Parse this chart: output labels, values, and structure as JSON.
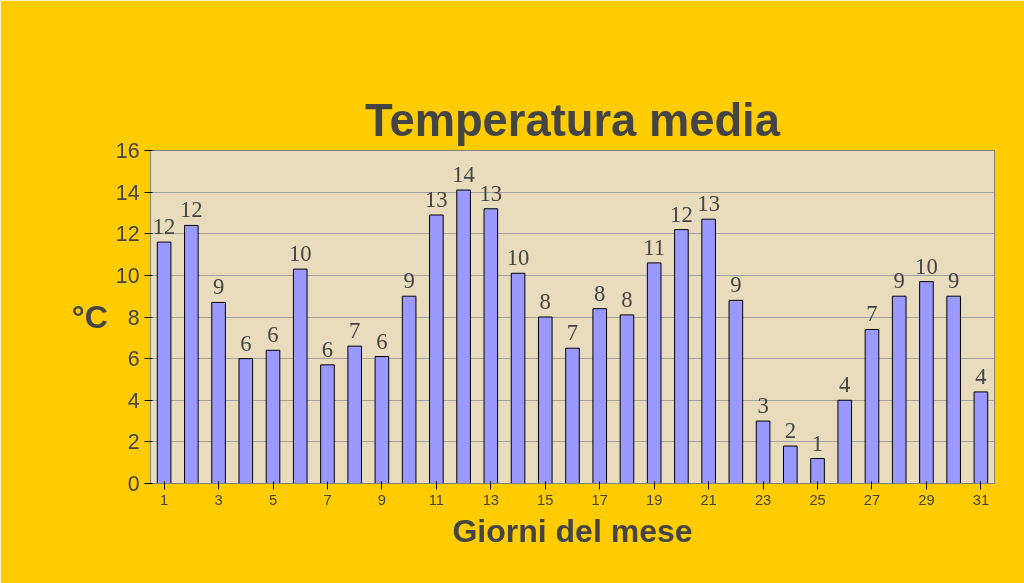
{
  "chart_data": {
    "type": "bar",
    "title": "Temperatura media",
    "xlabel": "Giorni del mese",
    "ylabel": "°C",
    "x": [
      1,
      2,
      3,
      4,
      5,
      6,
      7,
      8,
      9,
      10,
      11,
      12,
      13,
      14,
      15,
      16,
      17,
      18,
      19,
      20,
      21,
      22,
      23,
      24,
      25,
      26,
      27,
      28,
      29,
      30,
      31
    ],
    "values": [
      11.6,
      12.4,
      8.7,
      6.0,
      6.4,
      10.3,
      5.7,
      6.6,
      6.1,
      9.0,
      12.9,
      14.1,
      13.2,
      10.1,
      8.0,
      6.5,
      8.4,
      8.1,
      10.6,
      12.2,
      12.7,
      8.8,
      3.0,
      1.8,
      1.2,
      4.0,
      7.4,
      9.0,
      9.7,
      9.0,
      4.4
    ],
    "value_labels": [
      "12",
      "12",
      "9",
      "6",
      "6",
      "10",
      "6",
      "7",
      "6",
      "9",
      "13",
      "14",
      "13",
      "10",
      "8",
      "7",
      "8",
      "8",
      "11",
      "12",
      "13",
      "9",
      "3",
      "2",
      "1",
      "4",
      "7",
      "9",
      "10",
      "9",
      "4"
    ],
    "color": "#9999ff",
    "xlim": [
      0.5,
      31.5
    ],
    "xticks": [
      1,
      3,
      5,
      7,
      9,
      11,
      13,
      15,
      17,
      19,
      21,
      23,
      25,
      27,
      29,
      31
    ],
    "ylim": [
      0,
      16
    ],
    "yticks": [
      0,
      2,
      4,
      6,
      8,
      10,
      12,
      14,
      16
    ],
    "grid": "y"
  }
}
